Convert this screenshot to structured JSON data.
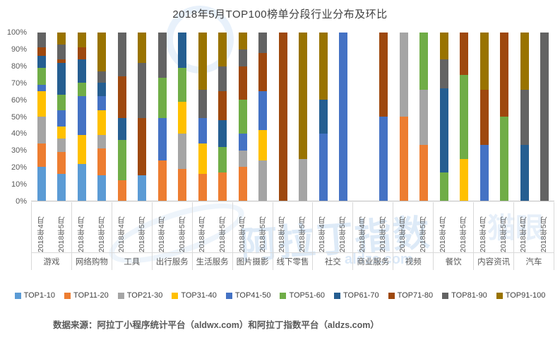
{
  "title": "2018年5月TOP100榜单分段行业分布及环比",
  "source": "数据来源：阿拉丁小程序统计平台（aldwx.com）和阿拉丁指数平台（aldzs.com）",
  "watermark": {
    "text": "阿拉丁指数",
    "subtext": "aldzs.com",
    "text2": "猫眼"
  },
  "y_axis": {
    "ticks": [
      "100%",
      "90%",
      "80%",
      "70%",
      "60%",
      "50%",
      "40%",
      "30%",
      "20%",
      "10%",
      "0%"
    ]
  },
  "legend": [
    {
      "label": "TOP1-10",
      "color": "#5B9BD5"
    },
    {
      "label": "TOP11-20",
      "color": "#ED7D31"
    },
    {
      "label": "TOP21-30",
      "color": "#A5A5A5"
    },
    {
      "label": "TOP31-40",
      "color": "#FFC000"
    },
    {
      "label": "TOP41-50",
      "color": "#4472C4"
    },
    {
      "label": "TOP51-60",
      "color": "#70AD47"
    },
    {
      "label": "TOP61-70",
      "color": "#255E91"
    },
    {
      "label": "TOP71-80",
      "color": "#9E480E"
    },
    {
      "label": "TOP81-90",
      "color": "#636363"
    },
    {
      "label": "TOP91-100",
      "color": "#997300"
    }
  ],
  "chart_data": {
    "type": "bar",
    "variant": "stacked-100-percent",
    "title": "2018年5月TOP100榜单分段行业分布及环比",
    "ylabel": "",
    "ylim": [
      0,
      100
    ],
    "ytick_step": 10,
    "grid": false,
    "legend_position": "bottom",
    "bands": [
      "TOP1-10",
      "TOP11-20",
      "TOP21-30",
      "TOP31-40",
      "TOP41-50",
      "TOP51-60",
      "TOP61-70",
      "TOP71-80",
      "TOP81-90",
      "TOP91-100"
    ],
    "band_colors": [
      "#5B9BD5",
      "#ED7D31",
      "#A5A5A5",
      "#FFC000",
      "#4472C4",
      "#70AD47",
      "#255E91",
      "#9E480E",
      "#636363",
      "#997300"
    ],
    "months": [
      "2018年4月",
      "2018年5月"
    ],
    "categories": [
      "游戏",
      "网络购物",
      "工具",
      "出行服务",
      "生活服务",
      "图片摄影",
      "线下零售",
      "社交",
      "商业服务",
      "视频",
      "餐饮",
      "内容资讯",
      "汽车"
    ],
    "bars": [
      {
        "category": "游戏",
        "month": "2018年4月",
        "values": [
          20,
          14,
          16,
          15,
          4,
          10,
          7,
          5,
          9,
          0
        ]
      },
      {
        "category": "游戏",
        "month": "2018年5月",
        "values": [
          16,
          13,
          8,
          7,
          10,
          9,
          19,
          2,
          9,
          7
        ]
      },
      {
        "category": "网络购物",
        "month": "2018年4月",
        "values": [
          22,
          0,
          0,
          17,
          23,
          8,
          14,
          7,
          0,
          9
        ]
      },
      {
        "category": "网络购物",
        "month": "2018年5月",
        "values": [
          15,
          16,
          8,
          15,
          8,
          0,
          8,
          0,
          7,
          23
        ]
      },
      {
        "category": "工具",
        "month": "2018年4月",
        "values": [
          0,
          12,
          0,
          0,
          0,
          24,
          13,
          25,
          26,
          0
        ]
      },
      {
        "category": "工具",
        "month": "2018年5月",
        "values": [
          15,
          0,
          0,
          0,
          0,
          0,
          0,
          34,
          33,
          18
        ]
      },
      {
        "category": "出行服务",
        "month": "2018年4月",
        "values": [
          0,
          24,
          0,
          0,
          25,
          24,
          0,
          0,
          27,
          0
        ]
      },
      {
        "category": "出行服务",
        "month": "2018年5月",
        "values": [
          0,
          19,
          21,
          19,
          0,
          20,
          21,
          0,
          0,
          0
        ]
      },
      {
        "category": "生活服务",
        "month": "2018年4月",
        "values": [
          0,
          16,
          0,
          18,
          15,
          0,
          0,
          0,
          17,
          34
        ]
      },
      {
        "category": "生活服务",
        "month": "2018年5月",
        "values": [
          0,
          17,
          0,
          0,
          0,
          15,
          16,
          17,
          15,
          20
        ]
      },
      {
        "category": "图片摄影",
        "month": "2018年4月",
        "values": [
          0,
          20,
          10,
          0,
          10,
          20,
          0,
          20,
          10,
          10
        ]
      },
      {
        "category": "图片摄影",
        "month": "2018年5月",
        "values": [
          0,
          0,
          24,
          18,
          23,
          0,
          0,
          23,
          12,
          0
        ]
      },
      {
        "category": "线下零售",
        "month": "2018年4月",
        "values": [
          0,
          0,
          0,
          0,
          0,
          0,
          0,
          100,
          0,
          0
        ]
      },
      {
        "category": "线下零售",
        "month": "2018年5月",
        "values": [
          0,
          0,
          25,
          0,
          0,
          0,
          0,
          0,
          0,
          75
        ]
      },
      {
        "category": "社交",
        "month": "2018年4月",
        "values": [
          0,
          0,
          0,
          0,
          40,
          0,
          20,
          0,
          0,
          40
        ]
      },
      {
        "category": "社交",
        "month": "2018年5月",
        "values": [
          0,
          0,
          0,
          0,
          100,
          0,
          0,
          0,
          0,
          0
        ]
      },
      {
        "category": "商业服务",
        "month": "2018年4月",
        "values": [
          0,
          0,
          0,
          0,
          0,
          0,
          0,
          0,
          0,
          0
        ]
      },
      {
        "category": "商业服务",
        "month": "2018年5月",
        "values": [
          0,
          0,
          0,
          0,
          50,
          0,
          0,
          50,
          0,
          0
        ]
      },
      {
        "category": "视频",
        "month": "2018年4月",
        "values": [
          0,
          50,
          50,
          0,
          0,
          0,
          0,
          0,
          0,
          0
        ]
      },
      {
        "category": "视频",
        "month": "2018年5月",
        "values": [
          0,
          33,
          33,
          0,
          0,
          34,
          0,
          0,
          0,
          0
        ]
      },
      {
        "category": "餐饮",
        "month": "2018年4月",
        "values": [
          0,
          0,
          0,
          0,
          0,
          17,
          50,
          0,
          17,
          16
        ]
      },
      {
        "category": "餐饮",
        "month": "2018年5月",
        "values": [
          0,
          0,
          0,
          25,
          0,
          50,
          0,
          25,
          0,
          0
        ]
      },
      {
        "category": "内容资讯",
        "month": "2018年4月",
        "values": [
          0,
          0,
          0,
          0,
          33,
          0,
          0,
          33,
          0,
          34
        ]
      },
      {
        "category": "内容资讯",
        "month": "2018年5月",
        "values": [
          0,
          0,
          0,
          0,
          0,
          50,
          0,
          50,
          0,
          0
        ]
      },
      {
        "category": "汽车",
        "month": "2018年4月",
        "values": [
          0,
          0,
          0,
          0,
          0,
          0,
          33,
          0,
          33,
          34
        ]
      },
      {
        "category": "汽车",
        "month": "2018年5月",
        "values": [
          0,
          0,
          0,
          0,
          0,
          0,
          0,
          0,
          100,
          0
        ]
      }
    ]
  }
}
